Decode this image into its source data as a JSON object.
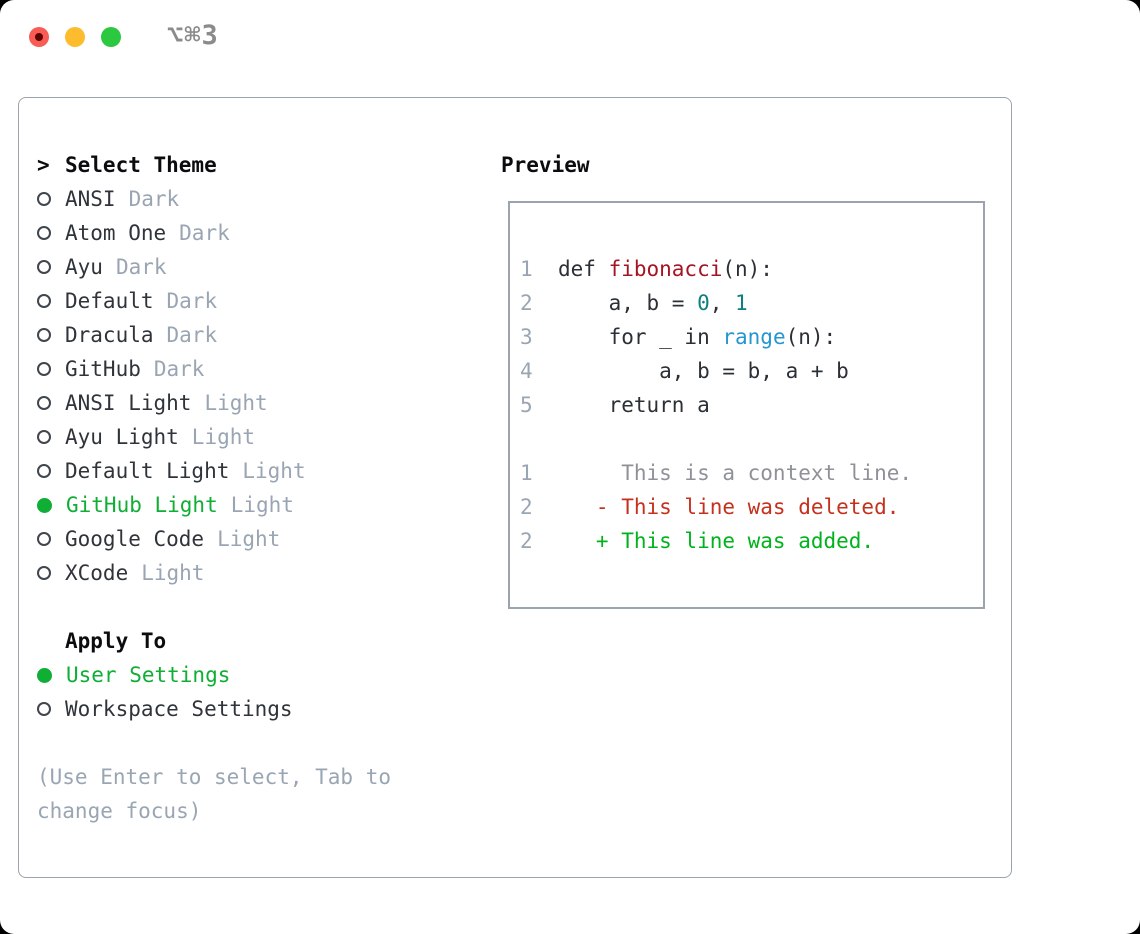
{
  "window": {
    "title": "⌥⌘3",
    "traffic_lights": [
      "close",
      "minimize",
      "zoom"
    ]
  },
  "colors": {
    "accent_green": "#0fae35",
    "diff_added_green": "#00b31c",
    "diff_deleted_red": "#c5311d",
    "function_red": "#a51423",
    "number_teal": "#0e7e82",
    "call_blue": "#2596d1",
    "muted_gray": "#9aa5b3",
    "border_gray": "#9aa3ae",
    "ink": "#2b3036"
  },
  "theme_panel": {
    "header": {
      "prefix": ">",
      "label": "Select Theme"
    },
    "themes": [
      {
        "name": "ANSI",
        "variant": "Dark",
        "selected": false
      },
      {
        "name": "Atom One",
        "variant": "Dark",
        "selected": false
      },
      {
        "name": "Ayu",
        "variant": "Dark",
        "selected": false
      },
      {
        "name": "Default",
        "variant": "Dark",
        "selected": false
      },
      {
        "name": "Dracula",
        "variant": "Dark",
        "selected": false
      },
      {
        "name": "GitHub",
        "variant": "Dark",
        "selected": false
      },
      {
        "name": "ANSI Light",
        "variant": "Light",
        "selected": false
      },
      {
        "name": "Ayu Light",
        "variant": "Light",
        "selected": false
      },
      {
        "name": "Default Light",
        "variant": "Light",
        "selected": false
      },
      {
        "name": "GitHub Light",
        "variant": "Light",
        "selected": true
      },
      {
        "name": "Google Code",
        "variant": "Light",
        "selected": false
      },
      {
        "name": "XCode",
        "variant": "Light",
        "selected": false
      }
    ],
    "apply_to": {
      "header": "Apply To",
      "options": [
        {
          "name": "User Settings",
          "selected": true
        },
        {
          "name": "Workspace Settings",
          "selected": false
        }
      ]
    },
    "hint": [
      "(Use Enter to select, Tab to",
      "change focus)"
    ]
  },
  "preview": {
    "header": "Preview",
    "code": [
      {
        "n": "1",
        "segs": [
          {
            "t": "def ",
            "c": "plain"
          },
          {
            "t": "fibonacci",
            "c": "func"
          },
          {
            "t": "(n):",
            "c": "plain"
          }
        ]
      },
      {
        "n": "2",
        "segs": [
          {
            "t": "    a, b = ",
            "c": "plain"
          },
          {
            "t": "0",
            "c": "num"
          },
          {
            "t": ", ",
            "c": "plain"
          },
          {
            "t": "1",
            "c": "num"
          }
        ]
      },
      {
        "n": "3",
        "segs": [
          {
            "t": "    for _ in ",
            "c": "plain"
          },
          {
            "t": "range",
            "c": "call"
          },
          {
            "t": "(n):",
            "c": "plain"
          }
        ]
      },
      {
        "n": "4",
        "segs": [
          {
            "t": "        a, b = b, a + b",
            "c": "plain"
          }
        ]
      },
      {
        "n": "5",
        "segs": [
          {
            "t": "    return a",
            "c": "plain"
          }
        ]
      },
      {
        "n": "",
        "segs": []
      },
      {
        "n": "1",
        "segs": [
          {
            "t": "     This is a context line.",
            "c": "ctx"
          }
        ]
      },
      {
        "n": "2",
        "segs": [
          {
            "t": "   - This line was deleted.",
            "c": "del"
          }
        ]
      },
      {
        "n": "2",
        "segs": [
          {
            "t": "   + This line was added.",
            "c": "add"
          }
        ]
      }
    ]
  }
}
